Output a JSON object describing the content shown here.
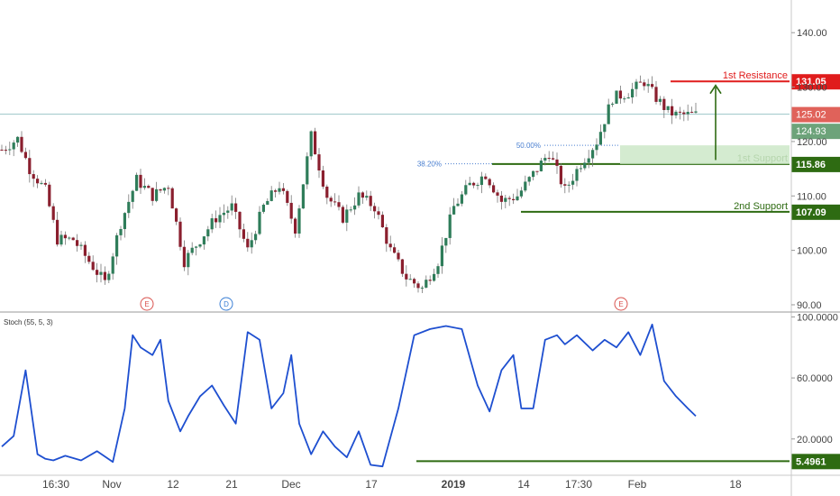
{
  "chart_data": [
    {
      "type": "candlestick",
      "title": "",
      "ylim": [
        89,
        146
      ],
      "y_ticks": [
        90,
        100,
        110,
        120,
        130,
        140
      ],
      "y_tick_labels": [
        "90.00",
        "100.00",
        "110.00",
        "120.00",
        "130.00",
        "140.00"
      ],
      "x_tick_labels": [
        "16:30",
        "Nov",
        "12",
        "21",
        "Dec",
        "17",
        "2019",
        "14",
        "17:30",
        "Feb",
        "18"
      ],
      "bar_index_range": [
        0,
        175
      ],
      "series": [
        {
          "name": "price",
          "bar_index": [
            0,
            4,
            7,
            11,
            14,
            18,
            22,
            26,
            30,
            34,
            38,
            42,
            46,
            50,
            54,
            58,
            62,
            66,
            70,
            74,
            78,
            82,
            86,
            90,
            94,
            98,
            102,
            106,
            110,
            114,
            118,
            122,
            126,
            130,
            134,
            138,
            142,
            146,
            150,
            154,
            158,
            162,
            165,
            168,
            170,
            172
          ],
          "close": [
            118.5,
            120.5,
            115,
            111,
            102,
            102,
            98,
            94,
            105,
            113,
            110,
            112,
            98,
            102,
            106,
            108,
            100,
            108,
            112,
            104,
            121,
            110,
            106,
            110,
            108,
            100,
            95,
            93,
            98,
            108,
            112,
            114,
            109,
            110,
            114,
            118,
            111,
            116,
            120,
            128,
            129,
            131,
            128,
            125.5,
            124.9,
            124.9
          ]
        }
      ],
      "markers": [
        "E",
        "D",
        "E"
      ],
      "levels": [
        {
          "label": "1st Resistance",
          "value": 131.05,
          "value_label": "131.05",
          "color": "#e01c1c"
        },
        {
          "label": "1st Support",
          "value": 115.86,
          "value_label": "115.86",
          "color": "#2e6b12"
        },
        {
          "label": "2nd Support",
          "value": 107.09,
          "value_label": "107.09",
          "color": "#2e6b12"
        }
      ],
      "price_tags": [
        {
          "value": 125.02,
          "label": "125.02",
          "color": "#e0625a"
        },
        {
          "value": 124.93,
          "label": "124.93",
          "color": "#6da37a"
        }
      ],
      "fibonacci": [
        {
          "label": "50.00%",
          "value": 119.3
        },
        {
          "label": "38.20%",
          "value": 115.9
        }
      ]
    },
    {
      "type": "line",
      "title": "Stoch (55, 5, 3)",
      "ylim": [
        -2,
        102
      ],
      "y_ticks": [
        20,
        60,
        100
      ],
      "y_tick_labels": [
        "20.0000",
        "60.0000",
        "100.0000"
      ],
      "series": [
        {
          "name": "Stoch",
          "bar_index": [
            0,
            3,
            6,
            9,
            11,
            13,
            16,
            20,
            24,
            28,
            31,
            33,
            35,
            38,
            40,
            42,
            45,
            47,
            50,
            53,
            56,
            59,
            62,
            65,
            68,
            71,
            73,
            75,
            78,
            81,
            84,
            87,
            90,
            93,
            96,
            100,
            104,
            108,
            112,
            116,
            120,
            123,
            126,
            129,
            131,
            134,
            137,
            140,
            142,
            145,
            149,
            152,
            155,
            158,
            161,
            164,
            167,
            170,
            173,
            175
          ],
          "values": [
            15,
            22,
            65,
            10,
            7,
            6,
            9,
            6,
            12,
            5,
            40,
            88,
            80,
            75,
            85,
            45,
            25,
            35,
            48,
            55,
            42,
            30,
            90,
            85,
            40,
            50,
            75,
            30,
            10,
            25,
            15,
            8,
            25,
            3,
            2,
            40,
            88,
            92,
            94,
            92,
            55,
            38,
            65,
            75,
            40,
            40,
            85,
            88,
            82,
            88,
            78,
            85,
            80,
            90,
            75,
            95,
            58,
            48,
            40,
            35
          ]
        }
      ],
      "levels": [
        {
          "value": 5.4961,
          "value_label": "5.4961",
          "color": "#2e6b12"
        }
      ]
    }
  ]
}
